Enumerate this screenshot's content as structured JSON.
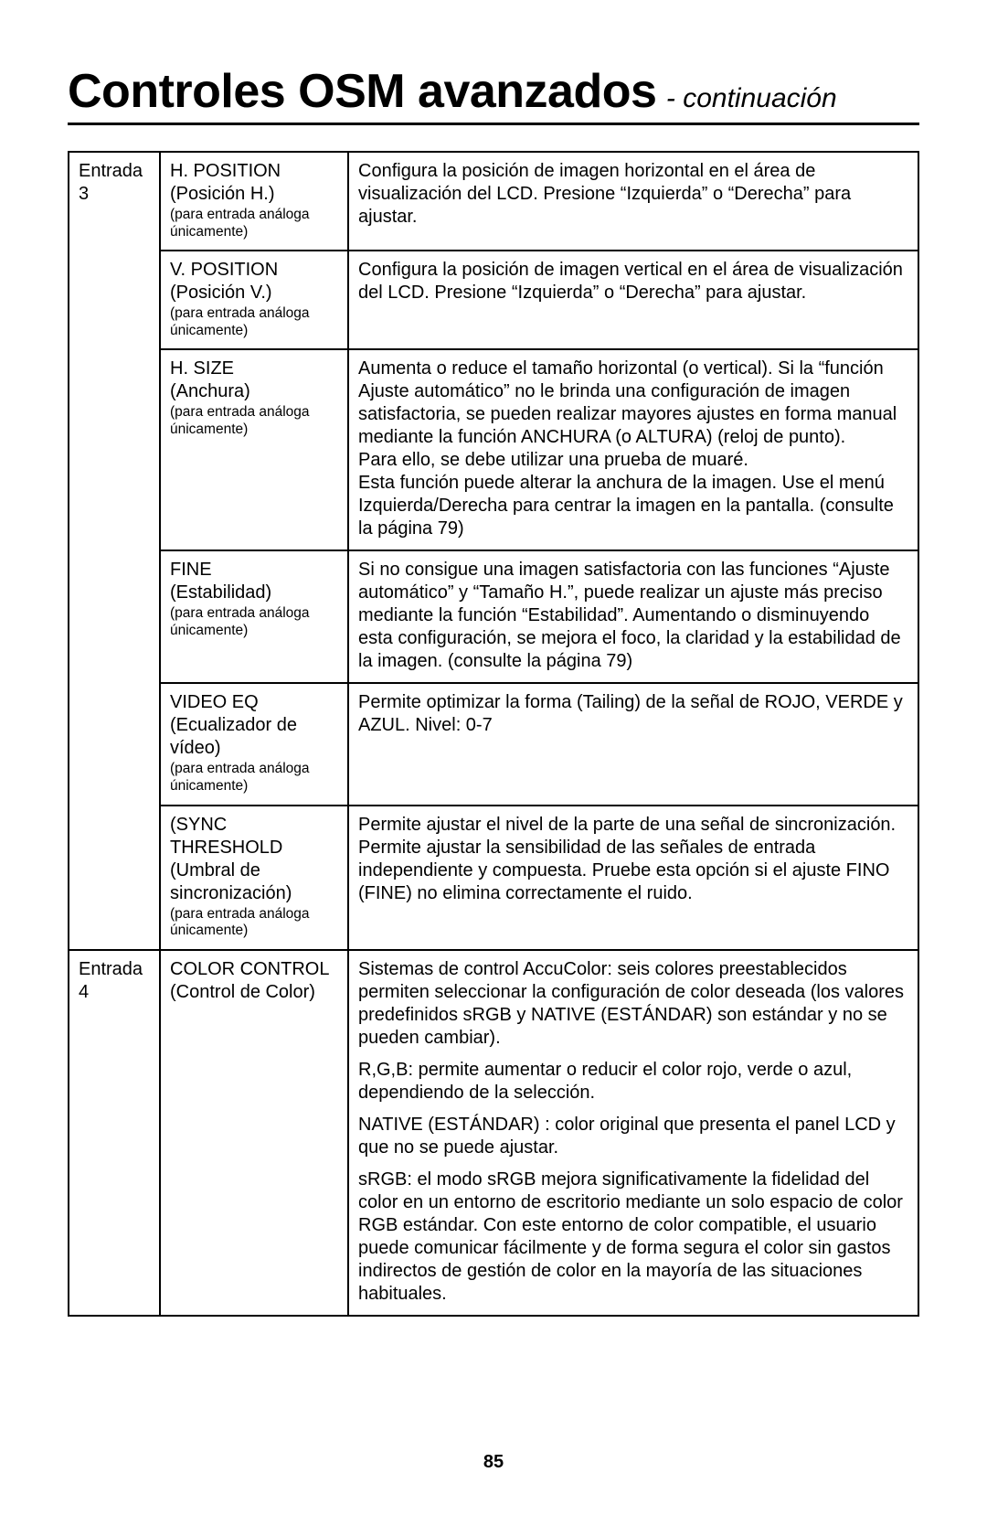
{
  "title_main": "Controles OSM avanzados",
  "title_cont": "- continuación",
  "page_number": "85",
  "sections": [
    {
      "entry": "Entrada 3",
      "rows": [
        {
          "name": "H. POSITION",
          "sub": "(Posición H.)",
          "note": "(para entrada análoga únicamente)",
          "desc": [
            "Configura la posición de imagen horizontal en el área de visualización del LCD. Presione “Izquierda” o “Derecha” para ajustar."
          ]
        },
        {
          "name": "V. POSITION",
          "sub": "(Posición V.)",
          "note": "(para entrada análoga únicamente)",
          "desc": [
            "Configura la posición de imagen vertical en el área de visualización del LCD. Presione “Izquierda” o “Derecha” para ajustar."
          ]
        },
        {
          "name": "H. SIZE",
          "sub": "(Anchura)",
          "note": "(para entrada análoga únicamente)",
          "desc": [
            "Aumenta o reduce el tamaño horizontal (o vertical). Si la “función Ajuste automático” no le brinda una configuración de imagen satisfactoria, se pueden realizar mayores ajustes en forma manual mediante la función ANCHURA (o ALTURA) (reloj de punto).\nPara ello, se debe utilizar una prueba de muaré.\nEsta función puede alterar la anchura de la imagen. Use el menú Izquierda/Derecha para centrar la imagen en la pantalla. (consulte la página 79)"
          ]
        },
        {
          "name": "FINE",
          "sub": "(Estabilidad)",
          "note": "(para entrada análoga únicamente)",
          "desc": [
            "Si no consigue una imagen satisfactoria con las funciones “Ajuste automático” y “Tamaño H.”, puede realizar un ajuste más preciso mediante la función “Estabilidad”. Aumentando o disminuyendo esta configuración, se mejora el foco, la claridad y la estabilidad de la imagen. (consulte la página 79)"
          ]
        },
        {
          "name": "VIDEO EQ",
          "sub": "(Ecualizador de vídeo)",
          "note": "(para entrada análoga únicamente)",
          "desc": [
            "Permite optimizar la forma (Tailing) de la señal de ROJO, VERDE y AZUL. Nivel: 0-7"
          ]
        },
        {
          "name": "(SYNC THRESHOLD",
          "sub": "(Umbral de sincronización)",
          "note": "(para entrada análoga únicamente)",
          "desc": [
            "Permite ajustar el nivel de la parte de una señal de sincronización. Permite ajustar la sensibilidad de las señales de entrada independiente y compuesta. Pruebe esta opción si el ajuste FINO (FINE) no elimina correctamente el ruido."
          ]
        }
      ]
    },
    {
      "entry": "Entrada 4",
      "rows": [
        {
          "name": "COLOR CONTROL",
          "sub": "(Control de Color)",
          "note": "",
          "desc": [
            "Sistemas de control AccuColor: seis colores preestablecidos permiten seleccionar la configuración de color deseada (los valores predefinidos sRGB y NATIVE (ESTÁNDAR) son estándar y no se pueden cambiar).",
            "R,G,B: permite aumentar o reducir el color rojo, verde o azul, dependiendo de la selección.",
            "NATIVE (ESTÁNDAR) : color original que presenta el panel LCD y que no se puede ajustar.",
            "sRGB: el modo sRGB mejora significativamente la fidelidad del color en un entorno de escritorio mediante un solo espacio de color RGB estándar. Con este entorno de color compatible, el usuario puede comunicar fácilmente y de forma segura el color sin gastos indirectos de gestión de color en la mayoría de las situaciones habituales."
          ]
        }
      ]
    }
  ]
}
